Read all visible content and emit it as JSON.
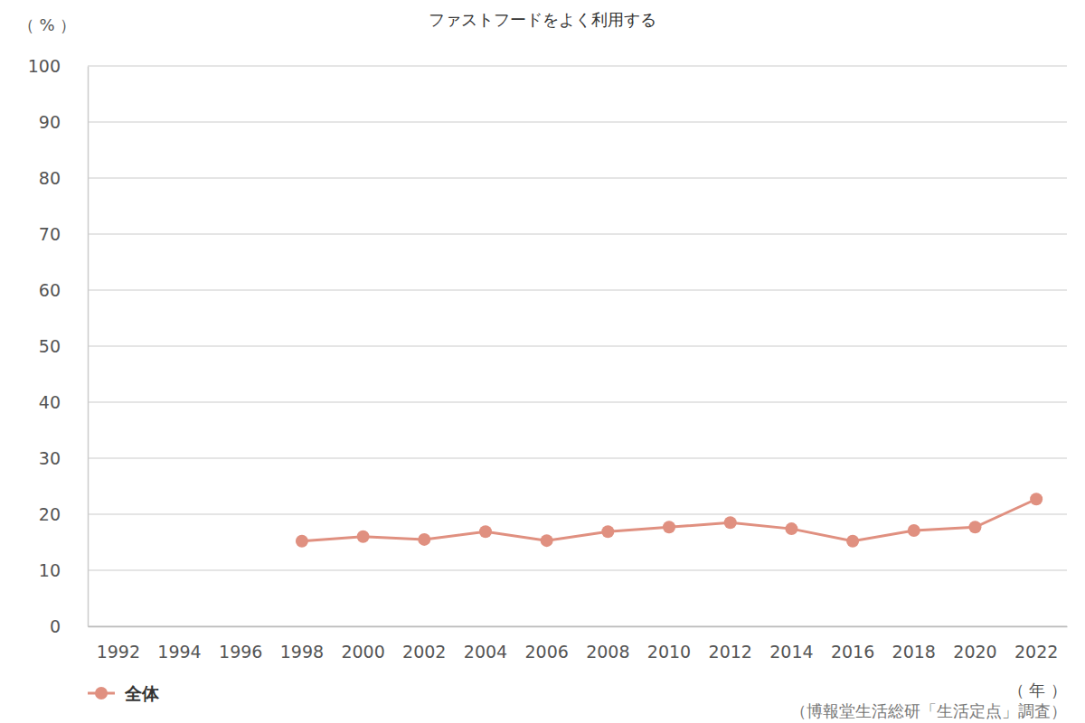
{
  "chart_data": {
    "type": "line",
    "title": "ファストフードをよく利用する",
    "y_label": "（ % ）",
    "x_label": "（ 年 ）",
    "source": "（博報堂生活総研「生活定点」調査）",
    "categories": [
      "1992",
      "1994",
      "1996",
      "1998",
      "2000",
      "2002",
      "2004",
      "2006",
      "2008",
      "2010",
      "2012",
      "2014",
      "2016",
      "2018",
      "2020",
      "2022"
    ],
    "series": [
      {
        "name": "全体",
        "color": "#e09080",
        "marker": "circle",
        "values": [
          null,
          null,
          null,
          15.2,
          16.0,
          15.5,
          16.9,
          15.3,
          16.9,
          17.7,
          18.5,
          17.4,
          15.2,
          17.1,
          17.7,
          22.7
        ]
      }
    ],
    "ylim": [
      0,
      100
    ],
    "yticks": [
      0,
      10,
      20,
      30,
      40,
      50,
      60,
      70,
      80,
      90,
      100
    ],
    "grid": true,
    "legend": "bottom-left"
  }
}
